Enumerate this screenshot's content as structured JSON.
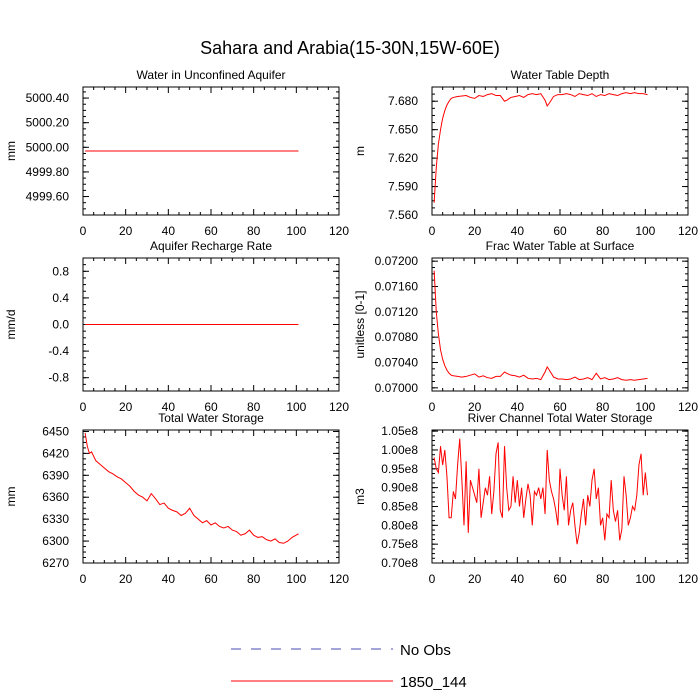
{
  "figure": {
    "title": "Sahara and Arabia(15-30N,15W-60E)",
    "series_color": "#ff0000",
    "obs_color": "#4b4bb4"
  },
  "legend": {
    "items": [
      {
        "label": "No Obs",
        "style": "dashed",
        "color": "#4b4bb4"
      },
      {
        "label": "1850_144",
        "style": "solid",
        "color": "#ff0000"
      }
    ]
  },
  "chart_data": [
    {
      "type": "line",
      "title": "Water in Unconfined Aquifer",
      "ylabel": "mm",
      "xlim": [
        0,
        120
      ],
      "xticks": [
        "0",
        "20",
        "40",
        "60",
        "80",
        "100",
        "120"
      ],
      "ylim": [
        4999.45,
        5000.49
      ],
      "yticks": [
        {
          "value": 5000.4,
          "label": "5000.40"
        },
        {
          "value": 5000.2,
          "label": "5000.20"
        },
        {
          "value": 5000.0,
          "label": "5000.00"
        },
        {
          "value": 4999.8,
          "label": "4999.80"
        },
        {
          "value": 4999.6,
          "label": "4999.60"
        }
      ],
      "series": [
        {
          "y": [
            4999.97,
            4999.97,
            4999.97,
            4999.97,
            4999.97,
            4999.97,
            4999.97,
            4999.97,
            4999.97,
            4999.97,
            4999.97
          ],
          "x": [
            1,
            11,
            21,
            31,
            41,
            51,
            61,
            71,
            81,
            91,
            101
          ]
        }
      ]
    },
    {
      "type": "line",
      "title": "Water Table Depth",
      "ylabel": "m",
      "xlim": [
        0,
        120
      ],
      "xticks": [
        "0",
        "20",
        "40",
        "60",
        "80",
        "100",
        "120"
      ],
      "ylim": [
        7.56,
        7.695
      ],
      "yticks": [
        {
          "value": 7.68,
          "label": "7.680"
        },
        {
          "value": 7.65,
          "label": "7.650"
        },
        {
          "value": 7.62,
          "label": "7.620"
        },
        {
          "value": 7.59,
          "label": "7.590"
        },
        {
          "value": 7.56,
          "label": "7.560"
        }
      ],
      "series": [
        {
          "x": [
            1,
            2,
            3,
            4,
            5,
            6,
            7,
            8,
            9,
            10,
            12,
            14,
            16,
            18,
            20,
            22,
            24,
            26,
            28,
            30,
            32,
            34,
            35,
            37,
            39,
            41,
            43,
            45,
            47,
            49,
            51,
            53,
            54,
            55,
            57,
            59,
            61,
            63,
            65,
            67,
            69,
            71,
            73,
            75,
            77,
            79,
            81,
            83,
            85,
            87,
            89,
            91,
            93,
            95,
            97,
            99,
            101
          ],
          "y": [
            7.573,
            7.61,
            7.635,
            7.65,
            7.662,
            7.67,
            7.676,
            7.68,
            7.683,
            7.684,
            7.685,
            7.6855,
            7.686,
            7.684,
            7.683,
            7.686,
            7.685,
            7.687,
            7.688,
            7.686,
            7.686,
            7.68,
            7.681,
            7.684,
            7.685,
            7.686,
            7.684,
            7.687,
            7.688,
            7.687,
            7.688,
            7.681,
            7.675,
            7.678,
            7.685,
            7.687,
            7.687,
            7.688,
            7.687,
            7.685,
            7.688,
            7.687,
            7.686,
            7.688,
            7.685,
            7.687,
            7.686,
            7.688,
            7.687,
            7.686,
            7.688,
            7.689,
            7.688,
            7.689,
            7.688,
            7.688,
            7.687
          ]
        }
      ]
    },
    {
      "type": "line",
      "title": "Aquifer Recharge Rate",
      "ylabel": "mm/d",
      "xlim": [
        0,
        120
      ],
      "xticks": [
        "0",
        "20",
        "40",
        "60",
        "80",
        "100",
        "120"
      ],
      "ylim": [
        -1.0,
        1.0
      ],
      "yticks": [
        {
          "value": 0.8,
          "label": "0.8"
        },
        {
          "value": 0.4,
          "label": "0.4"
        },
        {
          "value": 0.0,
          "label": "0.0"
        },
        {
          "value": -0.4,
          "label": "-0.4"
        },
        {
          "value": -0.8,
          "label": "-0.8"
        }
      ],
      "series": [
        {
          "x": [
            1,
            11,
            21,
            31,
            41,
            51,
            61,
            71,
            81,
            91,
            101
          ],
          "y": [
            0,
            0,
            0,
            0,
            0,
            0,
            0,
            0,
            0,
            0,
            0
          ]
        }
      ]
    },
    {
      "type": "line",
      "title": "Frac Water Table at Surface",
      "ylabel": "unitless [0-1]",
      "xlim": [
        0,
        120
      ],
      "xticks": [
        "0",
        "20",
        "40",
        "60",
        "80",
        "100",
        "120"
      ],
      "ylim": [
        0.06995,
        0.07205
      ],
      "yticks": [
        {
          "value": 0.072,
          "label": "0.07200"
        },
        {
          "value": 0.0716,
          "label": "0.07160"
        },
        {
          "value": 0.0712,
          "label": "0.07120"
        },
        {
          "value": 0.0708,
          "label": "0.07080"
        },
        {
          "value": 0.0704,
          "label": "0.07040"
        },
        {
          "value": 0.07,
          "label": "0.07000"
        }
      ],
      "series": [
        {
          "x": [
            1,
            2,
            3,
            4,
            5,
            6,
            7,
            8,
            9,
            10,
            12,
            14,
            16,
            18,
            20,
            22,
            24,
            26,
            28,
            30,
            32,
            34,
            35,
            37,
            39,
            41,
            43,
            45,
            47,
            49,
            51,
            53,
            54,
            55,
            57,
            59,
            61,
            63,
            65,
            67,
            69,
            71,
            73,
            75,
            77,
            79,
            81,
            83,
            85,
            87,
            89,
            91,
            93,
            95,
            97,
            99,
            101
          ],
          "y": [
            0.07185,
            0.0712,
            0.07085,
            0.0706,
            0.07045,
            0.07035,
            0.07028,
            0.07023,
            0.0702,
            0.07019,
            0.07018,
            0.07017,
            0.07018,
            0.0702,
            0.07022,
            0.07017,
            0.07019,
            0.07016,
            0.07015,
            0.07018,
            0.07018,
            0.07025,
            0.07023,
            0.0702,
            0.07019,
            0.07017,
            0.0702,
            0.07015,
            0.07014,
            0.07015,
            0.07013,
            0.07025,
            0.07033,
            0.07028,
            0.07017,
            0.07014,
            0.07014,
            0.07013,
            0.07014,
            0.07017,
            0.07013,
            0.07014,
            0.07016,
            0.07013,
            0.07023,
            0.07014,
            0.07016,
            0.07013,
            0.07014,
            0.07016,
            0.07013,
            0.07012,
            0.07013,
            0.07012,
            0.07013,
            0.07014,
            0.07015
          ]
        }
      ]
    },
    {
      "type": "line",
      "title": "Total Water Storage",
      "ylabel": "mm",
      "xlim": [
        0,
        120
      ],
      "xticks": [
        "0",
        "20",
        "40",
        "60",
        "80",
        "100",
        "120"
      ],
      "ylim": [
        6270,
        6452
      ],
      "yticks": [
        {
          "value": 6450,
          "label": "6450"
        },
        {
          "value": 6420,
          "label": "6420"
        },
        {
          "value": 6390,
          "label": "6390"
        },
        {
          "value": 6360,
          "label": "6360"
        },
        {
          "value": 6330,
          "label": "6330"
        },
        {
          "value": 6300,
          "label": "6300"
        },
        {
          "value": 6270,
          "label": "6270"
        }
      ],
      "series": [
        {
          "x": [
            1,
            2,
            3,
            4,
            6,
            8,
            10,
            12,
            14,
            16,
            18,
            20,
            22,
            24,
            26,
            28,
            30,
            32,
            34,
            36,
            38,
            40,
            42,
            44,
            46,
            48,
            50,
            52,
            54,
            56,
            58,
            60,
            62,
            64,
            66,
            68,
            70,
            72,
            74,
            76,
            78,
            80,
            82,
            84,
            86,
            88,
            90,
            92,
            94,
            96,
            98,
            101
          ],
          "y": [
            6448,
            6430,
            6420,
            6422,
            6410,
            6405,
            6400,
            6395,
            6392,
            6388,
            6385,
            6380,
            6375,
            6368,
            6363,
            6360,
            6355,
            6365,
            6358,
            6350,
            6352,
            6345,
            6342,
            6340,
            6335,
            6338,
            6345,
            6335,
            6330,
            6325,
            6328,
            6322,
            6325,
            6320,
            6318,
            6320,
            6315,
            6313,
            6308,
            6310,
            6315,
            6308,
            6305,
            6306,
            6302,
            6300,
            6303,
            6298,
            6297,
            6300,
            6305,
            6310
          ]
        }
      ]
    },
    {
      "type": "line",
      "title": "River Channel Total Water Storage",
      "ylabel": "m3",
      "xlim": [
        0,
        120
      ],
      "xticks": [
        "0",
        "20",
        "40",
        "60",
        "80",
        "100",
        "120"
      ],
      "ylim": [
        0.7,
        1.053
      ],
      "yticks": [
        {
          "value": 1.05,
          "label": "1.05e8"
        },
        {
          "value": 1.0,
          "label": "1.00e8"
        },
        {
          "value": 0.95,
          "label": "0.95e8"
        },
        {
          "value": 0.9,
          "label": "0.90e8"
        },
        {
          "value": 0.85,
          "label": "0.85e8"
        },
        {
          "value": 0.8,
          "label": "0.80e8"
        },
        {
          "value": 0.75,
          "label": "0.75e8"
        },
        {
          "value": 0.7,
          "label": "0.70e8"
        }
      ],
      "series": [
        {
          "x": [
            1,
            2,
            3,
            4,
            5,
            6,
            7,
            8,
            9,
            10,
            11,
            12,
            13,
            14,
            15,
            16,
            17,
            18,
            19,
            20,
            21,
            22,
            23,
            24,
            25,
            26,
            27,
            28,
            29,
            30,
            31,
            32,
            33,
            34,
            35,
            36,
            37,
            38,
            39,
            40,
            41,
            42,
            43,
            44,
            45,
            46,
            47,
            48,
            49,
            50,
            51,
            52,
            53,
            54,
            55,
            56,
            57,
            58,
            59,
            60,
            61,
            62,
            63,
            64,
            65,
            66,
            67,
            68,
            69,
            70,
            71,
            72,
            73,
            74,
            75,
            76,
            77,
            78,
            79,
            80,
            81,
            82,
            83,
            84,
            85,
            86,
            87,
            88,
            89,
            90,
            91,
            92,
            93,
            94,
            95,
            96,
            97,
            98,
            99,
            100,
            101
          ],
          "y": [
            0.98,
            0.95,
            0.94,
            1.01,
            0.96,
            1.0,
            0.93,
            0.82,
            0.82,
            0.89,
            0.87,
            0.96,
            1.03,
            0.92,
            0.8,
            0.97,
            0.78,
            0.92,
            0.9,
            0.88,
            0.86,
            0.95,
            0.82,
            0.86,
            0.9,
            0.88,
            0.93,
            0.83,
            0.89,
            0.99,
            1.02,
            0.84,
            0.82,
            1.01,
            0.9,
            0.84,
            0.85,
            0.93,
            0.86,
            0.92,
            0.85,
            0.9,
            0.82,
            0.87,
            0.91,
            0.88,
            0.8,
            0.89,
            0.88,
            0.9,
            0.87,
            0.9,
            0.83,
            1.0,
            0.92,
            0.89,
            0.87,
            0.84,
            0.8,
            0.95,
            0.88,
            0.84,
            0.93,
            0.8,
            0.84,
            0.86,
            0.8,
            0.75,
            0.78,
            0.83,
            0.87,
            0.8,
            0.88,
            0.85,
            0.92,
            0.95,
            0.87,
            0.9,
            0.8,
            0.82,
            0.76,
            0.83,
            0.82,
            0.92,
            0.84,
            0.81,
            0.84,
            0.76,
            0.79,
            0.93,
            0.88,
            0.8,
            0.82,
            0.85,
            0.84,
            0.88,
            0.96,
            0.99,
            0.88,
            0.94,
            0.88
          ]
        }
      ]
    }
  ]
}
